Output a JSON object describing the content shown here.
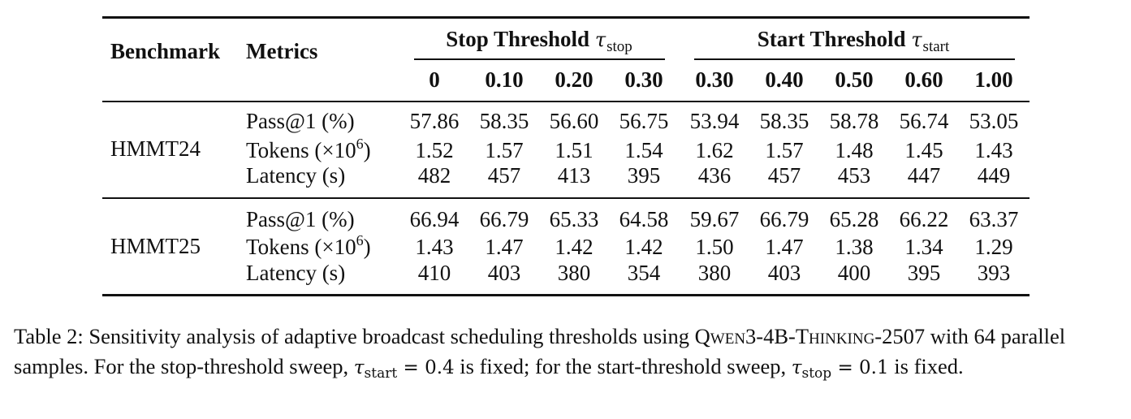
{
  "table": {
    "header": {
      "benchmark": "Benchmark",
      "metrics": "Metrics",
      "stop_group": {
        "label": "Stop Threshold",
        "symbol": "τ",
        "subscript": "stop"
      },
      "start_group": {
        "label": "Start Threshold",
        "symbol": "τ",
        "subscript": "start"
      },
      "stop_thresholds": [
        "0",
        "0.10",
        "0.20",
        "0.30"
      ],
      "start_thresholds": [
        "0.30",
        "0.40",
        "0.50",
        "0.60",
        "1.00"
      ]
    },
    "metric_labels": {
      "pass": "Pass@1 (%)",
      "tokens_prefix": "Tokens (×10",
      "tokens_exp": "6",
      "tokens_suffix": ")",
      "latency": "Latency (s)"
    },
    "blocks": [
      {
        "benchmark": "HMMT24",
        "rows": [
          [
            "57.86",
            "58.35",
            "56.60",
            "56.75",
            "53.94",
            "58.35",
            "58.78",
            "56.74",
            "53.05"
          ],
          [
            "1.52",
            "1.57",
            "1.51",
            "1.54",
            "1.62",
            "1.57",
            "1.48",
            "1.45",
            "1.43"
          ],
          [
            "482",
            "457",
            "413",
            "395",
            "436",
            "457",
            "453",
            "447",
            "449"
          ]
        ]
      },
      {
        "benchmark": "HMMT25",
        "rows": [
          [
            "66.94",
            "66.79",
            "65.33",
            "64.58",
            "59.67",
            "66.79",
            "65.28",
            "66.22",
            "63.37"
          ],
          [
            "1.43",
            "1.47",
            "1.42",
            "1.42",
            "1.50",
            "1.47",
            "1.38",
            "1.34",
            "1.29"
          ],
          [
            "410",
            "403",
            "380",
            "354",
            "380",
            "403",
            "400",
            "395",
            "393"
          ]
        ]
      }
    ]
  },
  "caption": {
    "p1": "Table 2: Sensitivity analysis of adaptive broadcast scheduling thresholds using ",
    "model": "Qwen3-4B-Thinking-2507",
    "p2": " with 64 parallel samples. For the stop-threshold sweep, ",
    "m1_sym": "τ",
    "m1_sub": "start",
    "m1_val": " = 0.4",
    "p3": " is fixed; for the start-threshold sweep, ",
    "m2_sym": "τ",
    "m2_sub": "stop",
    "m2_val": " = 0.1",
    "p4": " is fixed."
  }
}
